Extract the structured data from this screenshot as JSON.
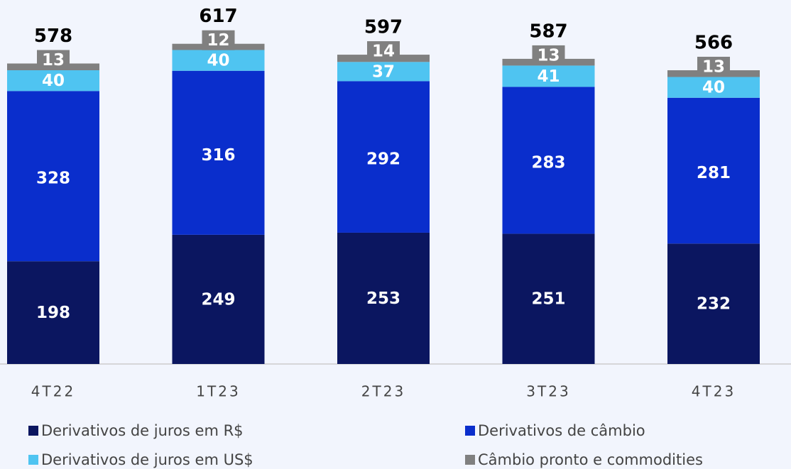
{
  "chart_data": {
    "type": "stacked_bar",
    "categories": [
      "4T22",
      "1T23",
      "2T23",
      "3T23",
      "4T23"
    ],
    "series": [
      {
        "name": "Derivativos de juros em R$",
        "color": "#0b1660",
        "values": [
          198,
          249,
          253,
          251,
          232
        ]
      },
      {
        "name": "Derivativos de câmbio",
        "color": "#0a2ecc",
        "values": [
          328,
          316,
          292,
          283,
          281
        ]
      },
      {
        "name": "Derivativos de juros em US$",
        "color": "#4fc4f1",
        "values": [
          40,
          40,
          37,
          41,
          40
        ]
      },
      {
        "name": "Câmbio pronto e commodities",
        "color": "#808080",
        "values": [
          13,
          12,
          14,
          13,
          13
        ]
      }
    ],
    "totals": [
      578,
      617,
      597,
      587,
      566
    ],
    "ylim": [
      0,
      700
    ]
  }
}
